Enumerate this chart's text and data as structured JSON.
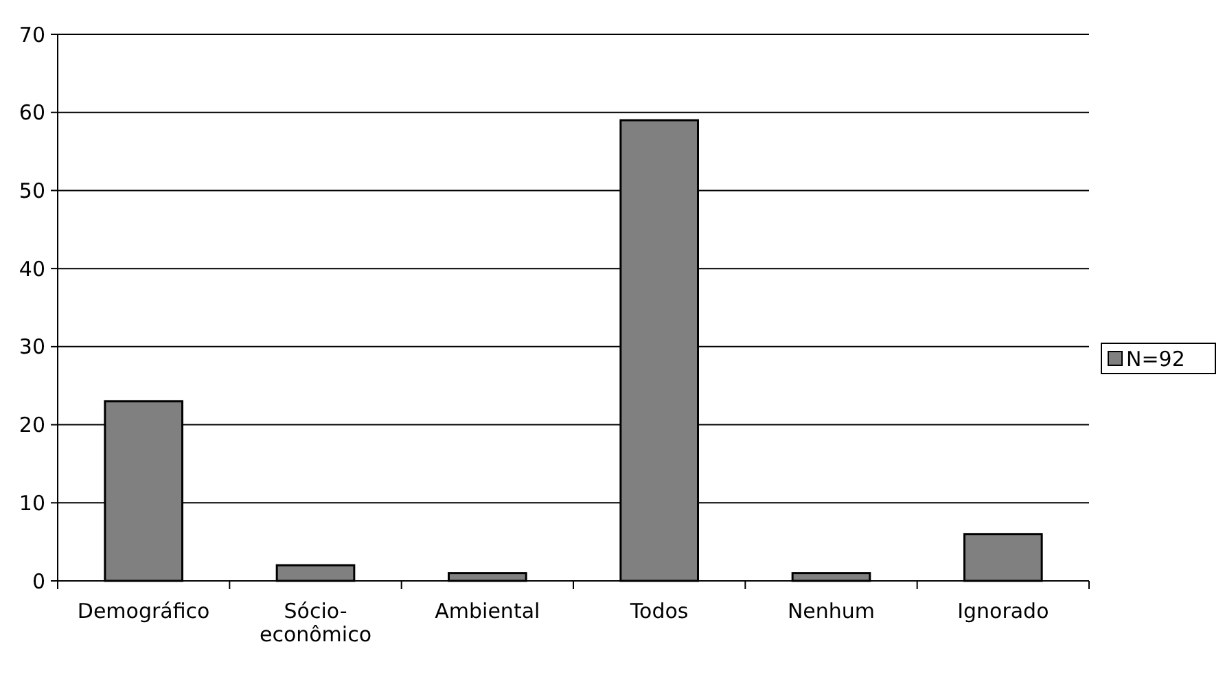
{
  "chart_data": {
    "type": "bar",
    "categories": [
      "Demográfico",
      "Sócio-econômico",
      "Ambiental",
      "Todos",
      "Nenhum",
      "Ignorado"
    ],
    "series": [
      {
        "name": "N=92",
        "color": "#808080",
        "values": [
          23,
          2,
          1,
          59,
          1,
          6
        ]
      }
    ],
    "ylim": [
      0,
      70
    ],
    "yticks": [
      0,
      10,
      20,
      30,
      40,
      50,
      60,
      70
    ],
    "grid": "y",
    "legend": "right"
  }
}
